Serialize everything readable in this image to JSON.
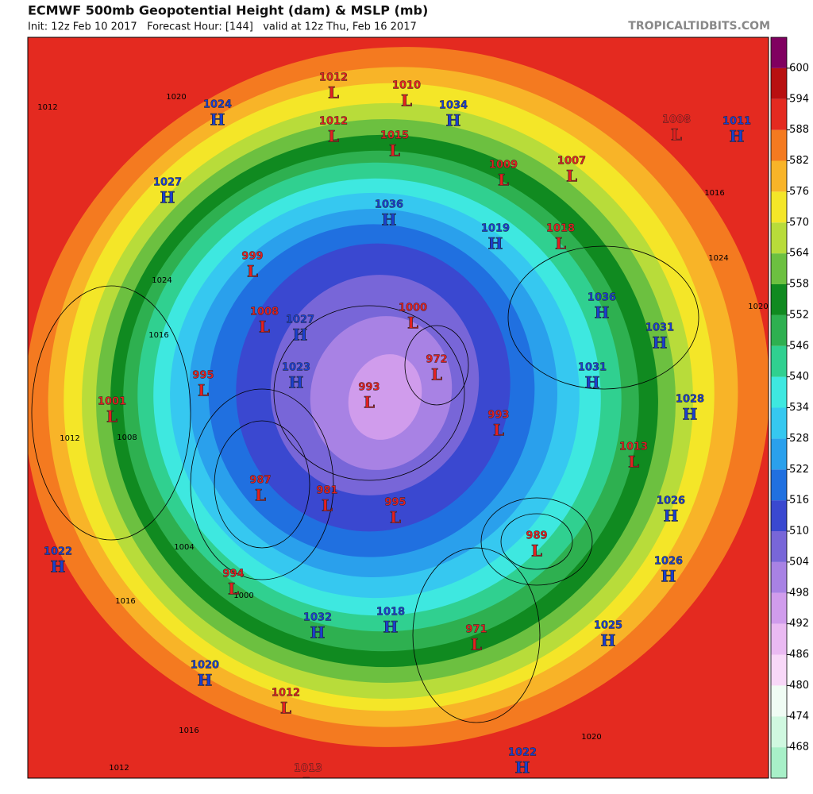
{
  "header": {
    "title": "ECMWF 500mb Geopotential Height (dam) & MSLP (mb)",
    "subtitle": "Init: 12z Feb 10 2017   Forecast Hour: [144]   valid at 12z Thu, Feb 16 2017",
    "credit": "TROPICALTIDBITS.COM"
  },
  "colorbar": {
    "ticks": [
      468,
      474,
      480,
      486,
      492,
      498,
      504,
      510,
      516,
      522,
      528,
      534,
      540,
      546,
      552,
      558,
      564,
      570,
      576,
      582,
      588,
      594,
      600
    ],
    "colors": [
      "#a8f0c8",
      "#d0f8e0",
      "#f0fcf4",
      "#f8d8f8",
      "#eabaf2",
      "#d09cec",
      "#a882e4",
      "#7866d8",
      "#3a48d0",
      "#2070e0",
      "#2aa0ec",
      "#36c8f0",
      "#3ee8e0",
      "#30d090",
      "#2eb050",
      "#108a20",
      "#6cc040",
      "#b8dc3a",
      "#f4e628",
      "#f8b428",
      "#f47a20",
      "#e42a20",
      "#b81010",
      "#800060"
    ]
  },
  "centers": [
    {
      "symbol": "H",
      "value": 1024
    },
    {
      "symbol": "H",
      "value": 1027
    },
    {
      "symbol": "L",
      "value": 1012
    },
    {
      "symbol": "L",
      "value": 1010
    },
    {
      "symbol": "H",
      "value": 1034
    },
    {
      "symbol": "L",
      "value": 1012
    },
    {
      "symbol": "L",
      "value": 1015
    },
    {
      "symbol": "L",
      "value": 1009
    },
    {
      "symbol": "L",
      "value": 1007
    },
    {
      "symbol": "L",
      "value": 1008
    },
    {
      "symbol": "H",
      "value": 1011
    },
    {
      "symbol": "H",
      "value": 1036
    },
    {
      "symbol": "H",
      "value": 1019
    },
    {
      "symbol": "L",
      "value": 1018
    },
    {
      "symbol": "L",
      "value": 999
    },
    {
      "symbol": "L",
      "value": 1008
    },
    {
      "symbol": "H",
      "value": 1027
    },
    {
      "symbol": "L",
      "value": 1000
    },
    {
      "symbol": "H",
      "value": 1036
    },
    {
      "symbol": "H",
      "value": 1031
    },
    {
      "symbol": "L",
      "value": 995
    },
    {
      "symbol": "H",
      "value": 1023
    },
    {
      "symbol": "L",
      "value": 993
    },
    {
      "symbol": "L",
      "value": 972
    },
    {
      "symbol": "H",
      "value": 1031
    },
    {
      "symbol": "H",
      "value": 1028
    },
    {
      "symbol": "L",
      "value": 1001
    },
    {
      "symbol": "L",
      "value": 993
    },
    {
      "symbol": "L",
      "value": 1013
    },
    {
      "symbol": "L",
      "value": 987
    },
    {
      "symbol": "L",
      "value": 981
    },
    {
      "symbol": "L",
      "value": 995
    },
    {
      "symbol": "H",
      "value": 1026
    },
    {
      "symbol": "L",
      "value": 989
    },
    {
      "symbol": "H",
      "value": 1022
    },
    {
      "symbol": "H",
      "value": 1026
    },
    {
      "symbol": "L",
      "value": 994
    },
    {
      "symbol": "H",
      "value": 1032
    },
    {
      "symbol": "H",
      "value": 1018
    },
    {
      "symbol": "L",
      "value": 971
    },
    {
      "symbol": "H",
      "value": 1025
    },
    {
      "symbol": "H",
      "value": 1020
    },
    {
      "symbol": "L",
      "value": 1012
    },
    {
      "symbol": "H",
      "value": 1022
    },
    {
      "symbol": "L",
      "value": 1013
    }
  ],
  "isobar_labels": [
    1012,
    1020,
    1016,
    1024,
    1008,
    1012,
    1004,
    1000,
    1016,
    1016,
    1012,
    1020,
    1024,
    1016,
    1020
  ]
}
